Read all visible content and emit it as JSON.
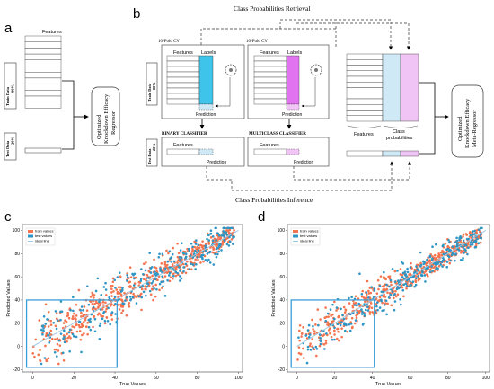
{
  "colors": {
    "train": "#f4744f",
    "test": "#2e95c4",
    "ideal": "#9ec9e3",
    "cyan": "#3ec4ea",
    "light_blue": "#cfe9f6",
    "magenta": "#e273f0",
    "light_magenta": "#f0c4f4",
    "roi_box": "#3a9fd8"
  },
  "panel_letters": {
    "a": "a",
    "b": "b",
    "c": "c",
    "d": "d"
  },
  "panel_a": {
    "features_label": "Features",
    "train_label": "Train Data",
    "train_pct": "80%",
    "test_label": "Test Data",
    "test_pct": "20%",
    "regressor_line1": "Optimized",
    "regressor_line2": "Knockdown Efficacy",
    "regressor_line3": "Regressor"
  },
  "panel_b": {
    "retrieval_title": "Class Probabilities Retrieval",
    "inference_title": "Class Probabilities Inference",
    "cv_label_1": "10-Fold CV",
    "cv_label_2": "10-Fold CV",
    "features_label": "Features",
    "labels_label": "Labels",
    "prediction_label": "Prediction",
    "binary_label": "BINARY CLASSIFIER",
    "multiclass_label": "MULTICLASS CLASSIFIER",
    "train_label": "Train Data",
    "train_pct": "80%",
    "test_label": "Test Data",
    "test_pct": "20%",
    "class_prob_line1": "Class",
    "class_prob_line2": "probabilities",
    "meta_line1": "Optimized",
    "meta_line2": "Knockdown Efficacy",
    "meta_line3": "Meta-Regressor"
  },
  "chart_data": [
    {
      "type": "scatter",
      "panel": "c",
      "xlabel": "True Values",
      "ylabel": "Predicted Values",
      "xlim": [
        -5,
        102
      ],
      "ylim": [
        -22,
        105
      ],
      "xticks": [
        0,
        20,
        40,
        60,
        80,
        100
      ],
      "yticks": [
        -20,
        0,
        20,
        40,
        60,
        80,
        100
      ],
      "legend_position": "top-left",
      "series": [
        {
          "name": "train values",
          "points": "dense cloud along y≈x, spread ±15"
        },
        {
          "name": "test values",
          "points": "dense cloud along y≈x, spread ±20"
        },
        {
          "name": "ideal line",
          "line": [
            [
              0,
              0
            ],
            [
              100,
              100
            ]
          ]
        }
      ],
      "highlight_box": {
        "x": [
          -3,
          41
        ],
        "y": [
          -18,
          40
        ]
      }
    },
    {
      "type": "scatter",
      "panel": "d",
      "xlabel": "True Values",
      "ylabel": "Predicted Values",
      "xlim": [
        -5,
        102
      ],
      "ylim": [
        -22,
        105
      ],
      "xticks": [
        0,
        20,
        40,
        60,
        80,
        100
      ],
      "yticks": [
        -20,
        0,
        20,
        40,
        60,
        80,
        100
      ],
      "legend_position": "top-left",
      "series": [
        {
          "name": "train values",
          "points": "dense cloud along y≈x, spread ±12"
        },
        {
          "name": "test values",
          "points": "dense cloud along y≈x, spread ±16"
        },
        {
          "name": "ideal line",
          "line": [
            [
              0,
              0
            ],
            [
              100,
              100
            ]
          ]
        }
      ],
      "highlight_box": {
        "x": [
          -3,
          41
        ],
        "y": [
          -18,
          40
        ]
      }
    }
  ]
}
